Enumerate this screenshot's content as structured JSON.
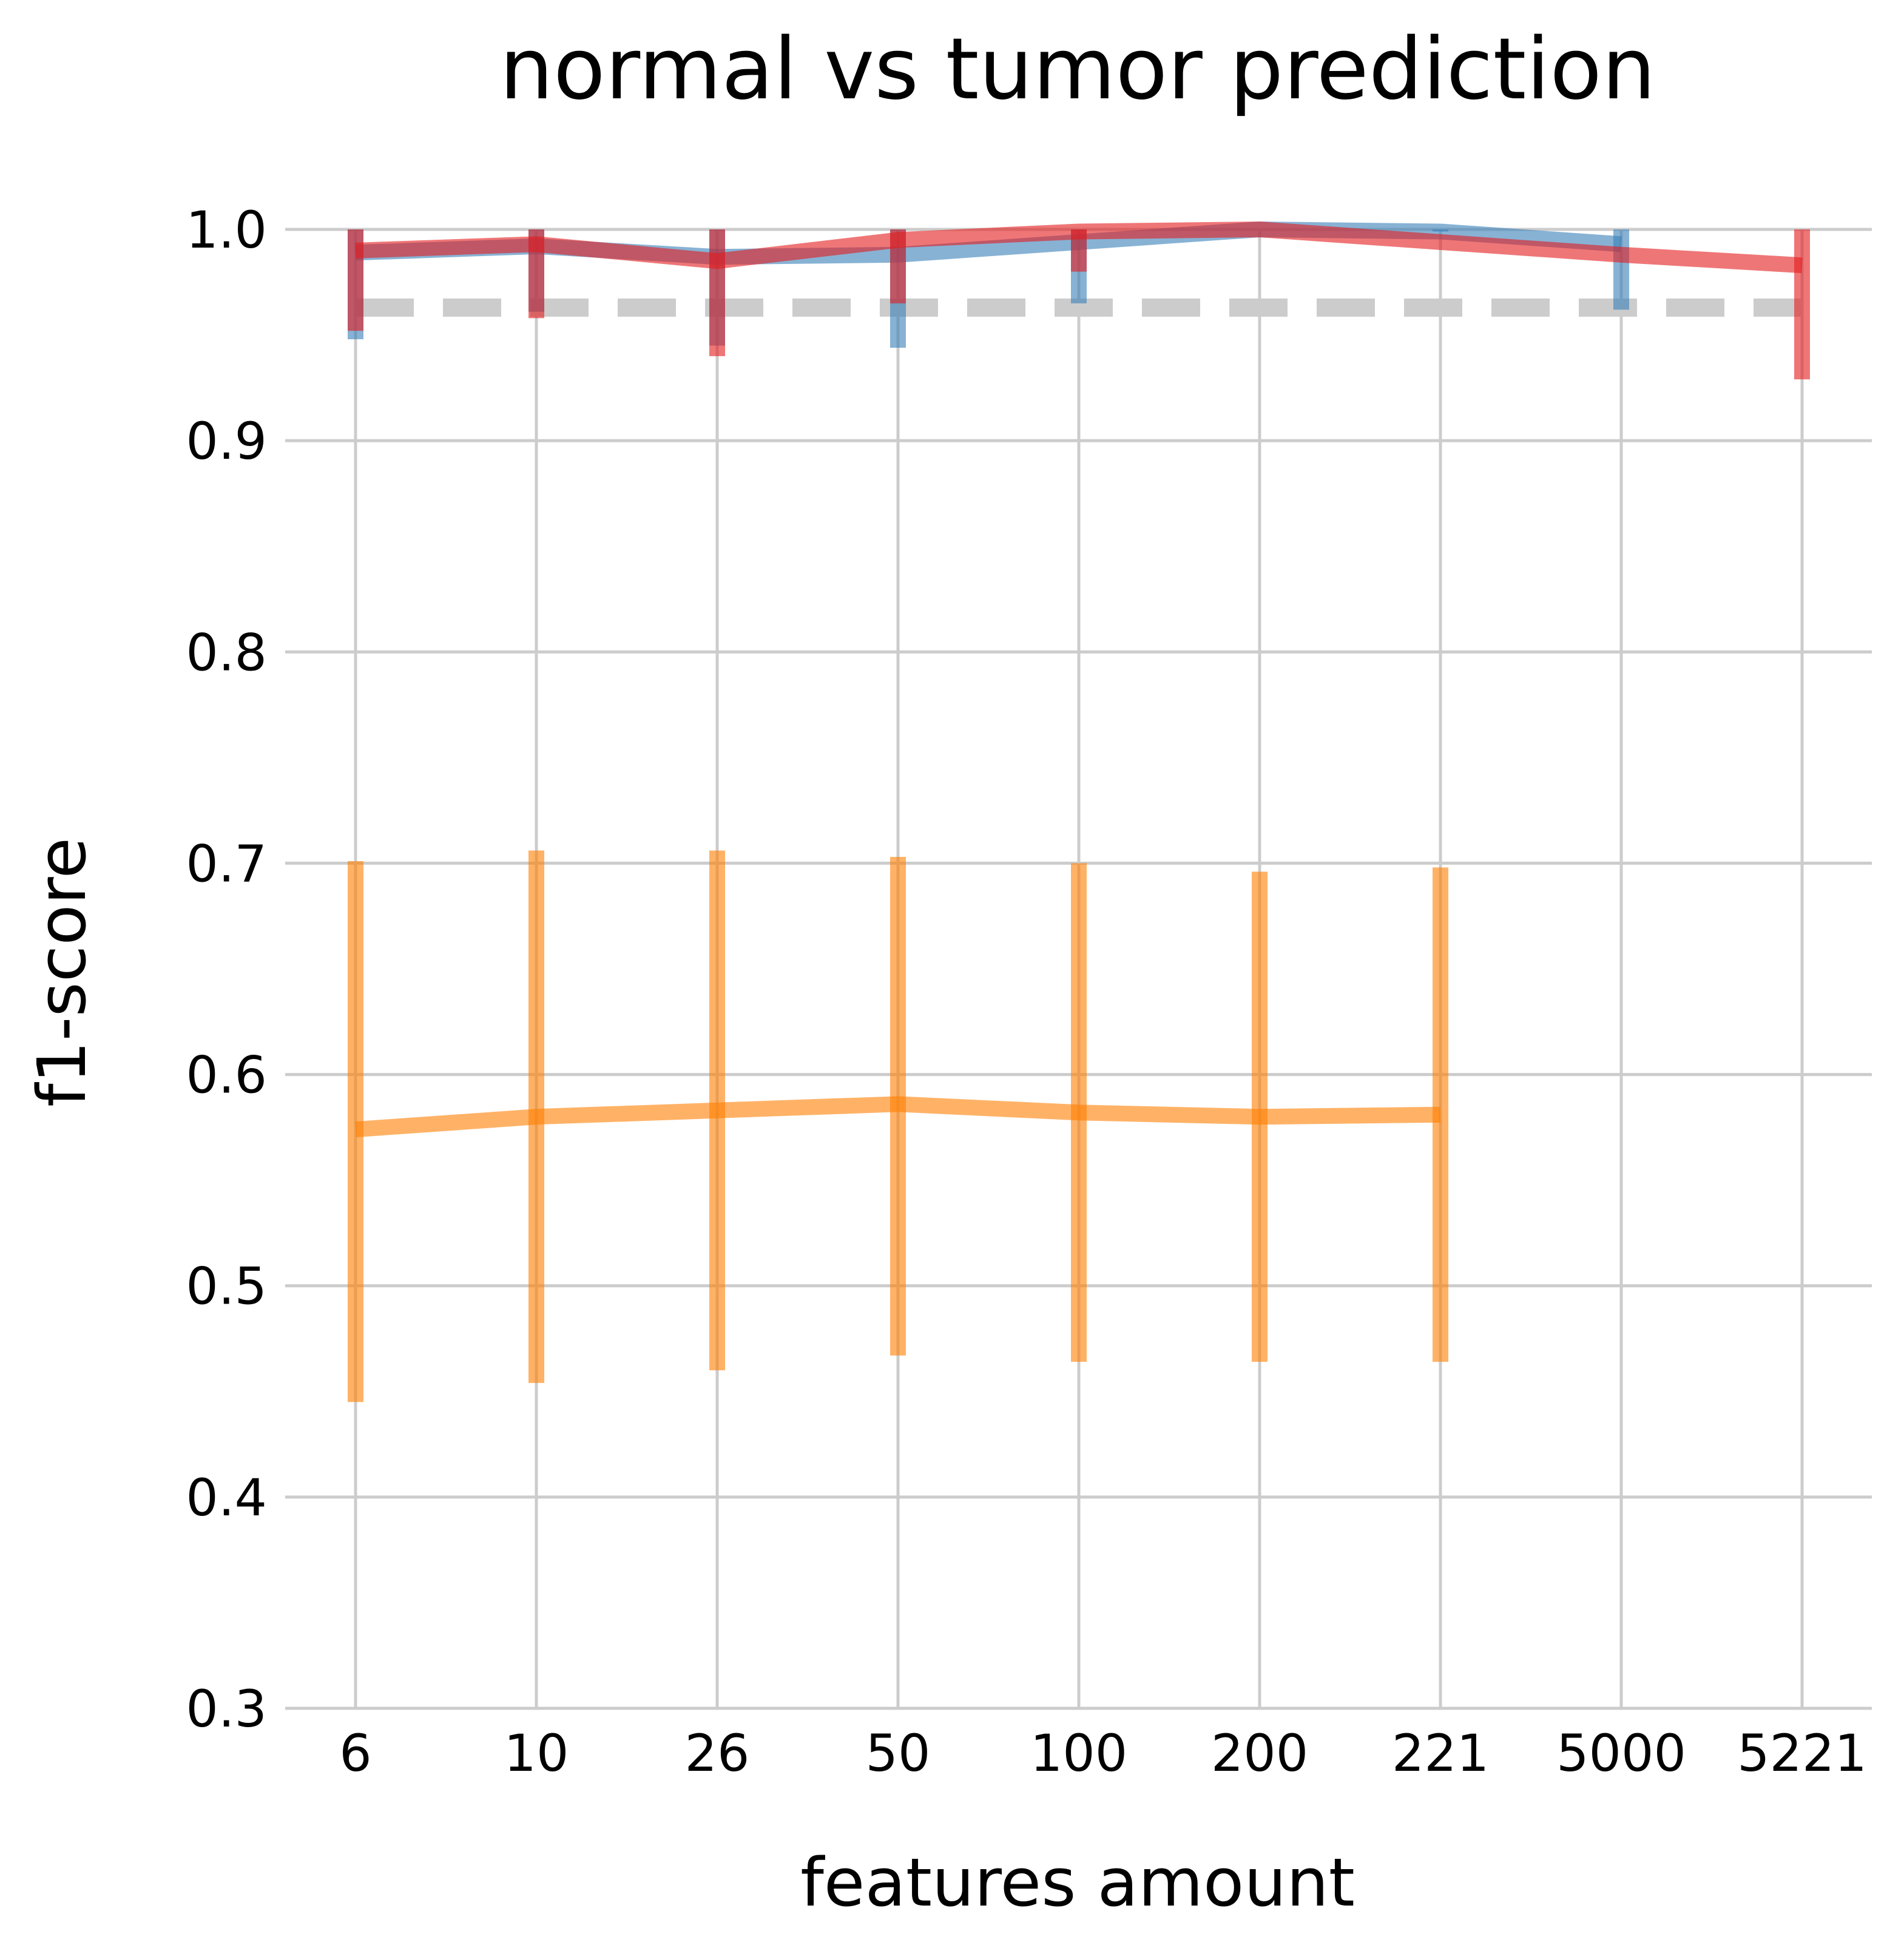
{
  "chart_data": {
    "type": "line",
    "title": "normal vs tumor prediction",
    "xlabel": "features amount",
    "ylabel": "f1-score",
    "categories": [
      "6",
      "10",
      "26",
      "50",
      "100",
      "200",
      "221",
      "5000",
      "5221"
    ],
    "ylim": [
      0.3,
      1.0
    ],
    "yticks": [
      "0.3",
      "0.4",
      "0.5",
      "0.6",
      "0.7",
      "0.8",
      "0.9",
      "1.0"
    ],
    "grid": true,
    "baseline": {
      "value": 0.963,
      "color": "#cccccc",
      "style": "dashed"
    },
    "series": [
      {
        "color": "#377eb8",
        "values": [
          0.989,
          0.992,
          0.987,
          0.988,
          0.994,
          1.0,
          0.999,
          0.993,
          null
        ],
        "err_low": [
          0.948,
          0.961,
          0.945,
          0.944,
          0.965,
          1.0,
          0.999,
          0.962,
          null
        ],
        "err_high": [
          1.0,
          1.0,
          1.0,
          1.0,
          1.0,
          1.0,
          1.0,
          1.0,
          null
        ]
      },
      {
        "color": "#e41a1c",
        "values": [
          0.99,
          0.993,
          0.985,
          0.995,
          0.999,
          1.0,
          0.994,
          0.988,
          0.983
        ],
        "err_low": [
          0.952,
          0.958,
          0.94,
          0.965,
          0.98,
          1.0,
          0.994,
          0.988,
          0.929
        ],
        "err_high": [
          1.0,
          1.0,
          1.0,
          1.0,
          1.0,
          1.0,
          0.994,
          0.988,
          1.0
        ]
      },
      {
        "color": "#ff7f00",
        "values": [
          0.574,
          0.58,
          0.583,
          0.586,
          0.582,
          0.58,
          0.581,
          null,
          null
        ],
        "err_low": [
          0.445,
          0.454,
          0.46,
          0.467,
          0.464,
          0.464,
          0.464,
          null,
          null
        ],
        "err_high": [
          0.701,
          0.706,
          0.706,
          0.703,
          0.7,
          0.696,
          0.698,
          null,
          null
        ]
      }
    ]
  }
}
